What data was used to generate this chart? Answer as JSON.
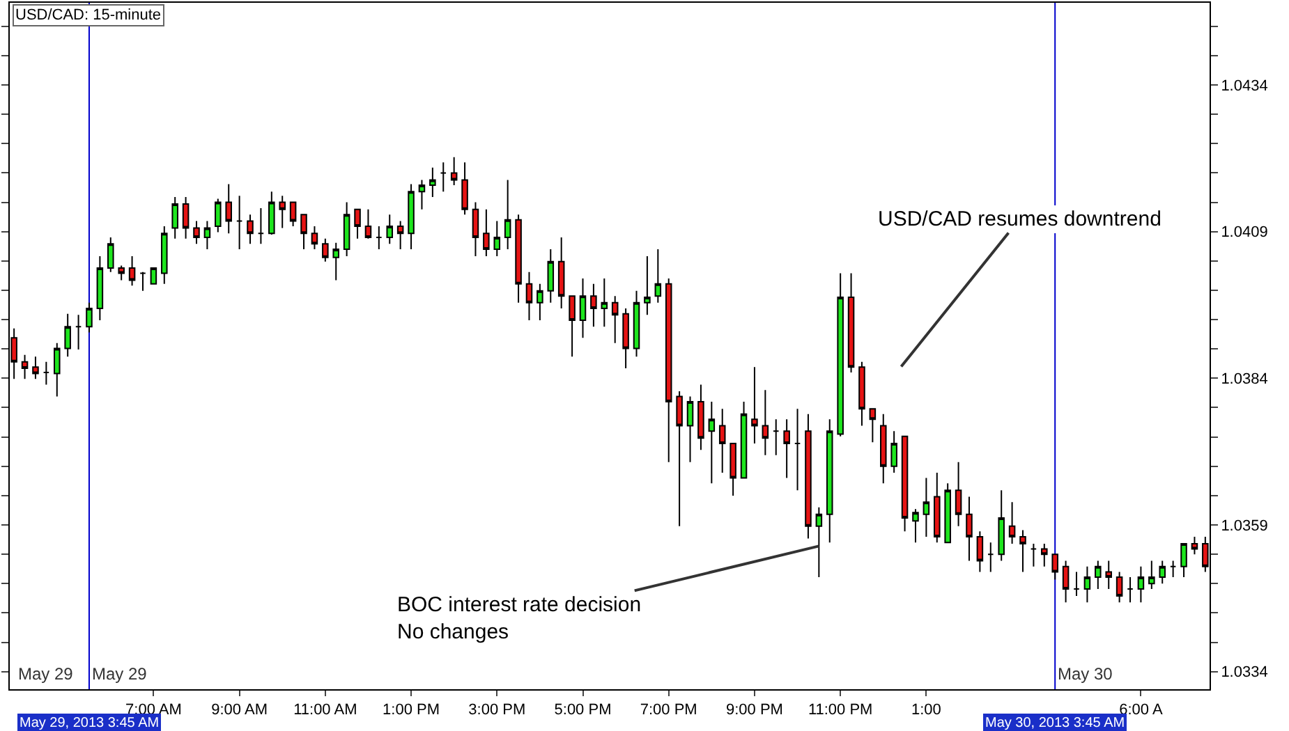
{
  "chart_data": {
    "type": "candlestick",
    "title": "USD/CAD: 15-minute",
    "x": [
      "2013-05-29T03:45",
      "2013-05-29T04:00",
      "2013-05-29T04:15",
      "2013-05-29T04:30",
      "2013-05-29T04:45",
      "2013-05-29T05:00",
      "2013-05-29T05:15",
      "2013-05-29T05:30",
      "2013-05-29T05:45",
      "2013-05-29T06:00",
      "2013-05-29T06:15",
      "2013-05-29T06:30",
      "2013-05-29T06:45",
      "2013-05-29T07:00",
      "2013-05-29T07:15",
      "2013-05-29T07:30",
      "2013-05-29T07:45",
      "2013-05-29T08:00",
      "2013-05-29T08:15",
      "2013-05-29T08:30",
      "2013-05-29T08:45",
      "2013-05-29T09:00",
      "2013-05-29T09:15",
      "2013-05-29T09:30",
      "2013-05-29T09:45",
      "2013-05-29T10:00",
      "2013-05-29T10:15",
      "2013-05-29T10:30",
      "2013-05-29T10:45",
      "2013-05-29T11:00",
      "2013-05-29T11:15",
      "2013-05-29T11:30",
      "2013-05-29T11:45",
      "2013-05-29T12:00",
      "2013-05-29T12:15",
      "2013-05-29T12:30",
      "2013-05-29T12:45",
      "2013-05-29T13:00",
      "2013-05-29T13:15",
      "2013-05-29T13:30",
      "2013-05-29T13:45",
      "2013-05-29T14:00",
      "2013-05-29T14:15",
      "2013-05-29T14:30",
      "2013-05-29T14:45",
      "2013-05-29T15:00",
      "2013-05-29T15:15",
      "2013-05-29T15:30",
      "2013-05-29T15:45",
      "2013-05-29T16:00",
      "2013-05-29T16:15",
      "2013-05-29T16:30",
      "2013-05-29T16:45",
      "2013-05-29T17:00",
      "2013-05-29T17:15",
      "2013-05-29T17:30",
      "2013-05-29T17:45",
      "2013-05-29T18:00",
      "2013-05-29T18:15",
      "2013-05-29T18:30",
      "2013-05-29T18:45",
      "2013-05-29T19:00",
      "2013-05-29T19:15",
      "2013-05-29T19:30",
      "2013-05-29T19:45",
      "2013-05-29T20:00",
      "2013-05-29T20:15",
      "2013-05-29T20:30",
      "2013-05-29T20:45",
      "2013-05-29T21:00",
      "2013-05-29T21:15",
      "2013-05-29T21:30",
      "2013-05-29T21:45",
      "2013-05-29T22:00",
      "2013-05-29T22:15",
      "2013-05-29T22:30",
      "2013-05-29T22:45",
      "2013-05-29T23:00",
      "2013-05-29T23:15",
      "2013-05-29T23:30",
      "2013-05-29T23:45",
      "2013-05-30T00:00",
      "2013-05-30T00:15",
      "2013-05-30T00:30",
      "2013-05-30T00:45",
      "2013-05-30T01:00",
      "2013-05-30T01:15",
      "2013-05-30T01:30",
      "2013-05-30T01:45",
      "2013-05-30T02:00",
      "2013-05-30T02:15",
      "2013-05-30T02:30",
      "2013-05-30T02:45",
      "2013-05-30T03:00",
      "2013-05-30T03:15",
      "2013-05-30T03:30",
      "2013-05-30T03:45",
      "2013-05-30T04:00",
      "2013-05-30T04:15",
      "2013-05-30T04:30",
      "2013-05-30T04:45",
      "2013-05-30T05:00",
      "2013-05-30T05:15",
      "2013-05-30T05:30",
      "2013-05-30T05:45",
      "2013-05-30T06:00",
      "2013-05-30T06:15",
      "2013-05-30T06:30",
      "2013-05-30T06:45",
      "2013-05-30T07:00",
      "2013-05-30T07:15",
      "2013-05-30T07:30"
    ],
    "ohlc": [
      [
        1.03909,
        1.03925,
        1.03839,
        1.03868
      ],
      [
        1.03868,
        1.0388,
        1.03839,
        1.03857
      ],
      [
        1.03859,
        1.03877,
        1.03839,
        1.03848
      ],
      [
        1.0385,
        1.03868,
        1.03829,
        1.0385
      ],
      [
        1.03848,
        1.039,
        1.03809,
        1.03891
      ],
      [
        1.03891,
        1.0395,
        1.03877,
        1.03928
      ],
      [
        1.03928,
        1.03948,
        1.03889,
        1.03928
      ],
      [
        1.03928,
        1.03969,
        1.03918,
        1.03959
      ],
      [
        1.03959,
        1.04048,
        1.03939,
        1.04028
      ],
      [
        1.04028,
        1.0408,
        1.04021,
        1.04069
      ],
      [
        1.04028,
        1.04032,
        1.04007,
        1.04019
      ],
      [
        1.04028,
        1.04048,
        1.03998,
        1.04007
      ],
      [
        1.04019,
        1.04021,
        1.03989,
        1.04019
      ],
      [
        1.04001,
        1.04028,
        1.04001,
        1.04028
      ],
      [
        1.04019,
        1.04099,
        1.04001,
        1.04087
      ],
      [
        1.04096,
        1.04149,
        1.04078,
        1.04137
      ],
      [
        1.04137,
        1.04149,
        1.04078,
        1.04096
      ],
      [
        1.04096,
        1.04108,
        1.04069,
        1.0408
      ],
      [
        1.0408,
        1.04108,
        1.0406,
        1.04096
      ],
      [
        1.04099,
        1.04146,
        1.04089,
        1.0414
      ],
      [
        1.0414,
        1.04171,
        1.04087,
        1.04108
      ],
      [
        1.04108,
        1.04151,
        1.0406,
        1.04108
      ],
      [
        1.04108,
        1.04119,
        1.04069,
        1.04087
      ],
      [
        1.04087,
        1.0413,
        1.04069,
        1.04087
      ],
      [
        1.04087,
        1.04158,
        1.04085,
        1.0414
      ],
      [
        1.0414,
        1.04151,
        1.04096,
        1.04128
      ],
      [
        1.0414,
        1.0414,
        1.04099,
        1.04108
      ],
      [
        1.04119,
        1.04119,
        1.0406,
        1.04087
      ],
      [
        1.04087,
        1.04099,
        1.0406,
        1.04069
      ],
      [
        1.04069,
        1.04078,
        1.04039,
        1.04046
      ],
      [
        1.04046,
        1.04071,
        1.04007,
        1.0406
      ],
      [
        1.0406,
        1.0414,
        1.04048,
        1.04119
      ],
      [
        1.04128,
        1.04128,
        1.04078,
        1.04099
      ],
      [
        1.04099,
        1.04128,
        1.04078,
        1.0408
      ],
      [
        1.0408,
        1.04099,
        1.0406,
        1.0408
      ],
      [
        1.0408,
        1.04119,
        1.04069,
        1.04099
      ],
      [
        1.04099,
        1.04108,
        1.0406,
        1.04087
      ],
      [
        1.04087,
        1.04171,
        1.0406,
        1.04158
      ],
      [
        1.04158,
        1.04178,
        1.04128,
        1.04169
      ],
      [
        1.04169,
        1.04199,
        1.04149,
        1.04178
      ],
      [
        1.0419,
        1.04208,
        1.04158,
        1.0419
      ],
      [
        1.0419,
        1.04217,
        1.04169,
        1.04178
      ],
      [
        1.04178,
        1.04208,
        1.04119,
        1.04128
      ],
      [
        1.04128,
        1.0414,
        1.04048,
        1.0408
      ],
      [
        1.04087,
        1.04128,
        1.04048,
        1.0406
      ],
      [
        1.0406,
        1.04108,
        1.04048,
        1.0408
      ],
      [
        1.0408,
        1.04178,
        1.0406,
        1.0411
      ],
      [
        1.0411,
        1.04119,
        1.03969,
        1.04001
      ],
      [
        1.04001,
        1.04021,
        1.03939,
        1.03969
      ],
      [
        1.03969,
        1.04001,
        1.03939,
        1.03989
      ],
      [
        1.03989,
        1.0406,
        1.03969,
        1.04039
      ],
      [
        1.04039,
        1.0408,
        1.03959,
        1.0398
      ],
      [
        1.0398,
        1.0398,
        1.03877,
        1.03939
      ],
      [
        1.03939,
        1.0401,
        1.03909,
        1.0398
      ],
      [
        1.0398,
        1.04001,
        1.03928,
        1.03959
      ],
      [
        1.03959,
        1.0401,
        1.03928,
        1.03969
      ],
      [
        1.03969,
        1.0398,
        1.039,
        1.03948
      ],
      [
        1.0395,
        1.03959,
        1.03857,
        1.03891
      ],
      [
        1.03891,
        1.03989,
        1.03877,
        1.03969
      ],
      [
        1.03969,
        1.04048,
        1.03948,
        1.03978
      ],
      [
        1.0398,
        1.0406,
        1.03969,
        1.04001
      ],
      [
        1.04001,
        1.0401,
        1.03697,
        1.038
      ],
      [
        1.03809,
        1.03818,
        1.03588,
        1.03759
      ],
      [
        1.03759,
        1.03809,
        1.03697,
        1.038
      ],
      [
        1.038,
        1.03829,
        1.03718,
        1.03738
      ],
      [
        1.0375,
        1.038,
        1.03661,
        1.0377
      ],
      [
        1.03759,
        1.03788,
        1.03679,
        1.03729
      ],
      [
        1.03729,
        1.03729,
        1.0364,
        1.0367
      ],
      [
        1.0367,
        1.038,
        1.0367,
        1.03779
      ],
      [
        1.0377,
        1.03859,
        1.03729,
        1.03759
      ],
      [
        1.03759,
        1.0382,
        1.03709,
        1.03738
      ],
      [
        1.0375,
        1.0377,
        1.03709,
        1.0375
      ],
      [
        1.0375,
        1.0377,
        1.0367,
        1.03729
      ],
      [
        1.03729,
        1.03788,
        1.03649,
        1.03729
      ],
      [
        1.0375,
        1.03779,
        1.03567,
        1.03588
      ],
      [
        1.03588,
        1.0362,
        1.03501,
        1.03608
      ],
      [
        1.03608,
        1.0377,
        1.0356,
        1.0375
      ],
      [
        1.03745,
        1.04019,
        1.03741,
        1.03978
      ],
      [
        1.03978,
        1.04019,
        1.0385,
        1.03859
      ],
      [
        1.03859,
        1.03868,
        1.03759,
        1.03788
      ],
      [
        1.03788,
        1.03788,
        1.03731,
        1.0377
      ],
      [
        1.03759,
        1.03779,
        1.03661,
        1.0369
      ],
      [
        1.0369,
        1.0375,
        1.03679,
        1.03729
      ],
      [
        1.03741,
        1.03741,
        1.03579,
        1.03602
      ],
      [
        1.03597,
        1.03617,
        1.0356,
        1.03611
      ],
      [
        1.03608,
        1.0367,
        1.0357,
        1.03629
      ],
      [
        1.03638,
        1.03679,
        1.0356,
        1.0357
      ],
      [
        1.0356,
        1.03661,
        1.0356,
        1.03649
      ],
      [
        1.03649,
        1.03697,
        1.03588,
        1.03608
      ],
      [
        1.03608,
        1.03638,
        1.03529,
        1.0357
      ],
      [
        1.0357,
        1.03579,
        1.0351,
        1.03529
      ],
      [
        1.0354,
        1.0356,
        1.0351,
        1.0354
      ],
      [
        1.0354,
        1.03649,
        1.03529,
        1.03602
      ],
      [
        1.03588,
        1.03629,
        1.03558,
        1.0357
      ],
      [
        1.0357,
        1.03581,
        1.0351,
        1.03558
      ],
      [
        1.03549,
        1.03558,
        1.03519,
        1.03549
      ],
      [
        1.03549,
        1.03558,
        1.03519,
        1.0354
      ],
      [
        1.0354,
        1.0354,
        1.03497,
        1.0351
      ],
      [
        1.03519,
        1.03529,
        1.03458,
        1.03481
      ],
      [
        1.03481,
        1.0351,
        1.03469,
        1.03481
      ],
      [
        1.03481,
        1.03519,
        1.03458,
        1.03501
      ],
      [
        1.03501,
        1.03529,
        1.03481,
        1.03519
      ],
      [
        1.0351,
        1.03529,
        1.03481,
        1.03501
      ],
      [
        1.03501,
        1.0351,
        1.03458,
        1.03469
      ],
      [
        1.03481,
        1.03501,
        1.03458,
        1.03481
      ],
      [
        1.03481,
        1.03519,
        1.03458,
        1.03501
      ],
      [
        1.0349,
        1.03529,
        1.03481,
        1.03501
      ],
      [
        1.03501,
        1.03529,
        1.0349,
        1.03519
      ],
      [
        1.03519,
        1.03529,
        1.03501,
        1.03519
      ],
      [
        1.03519,
        1.03558,
        1.03501,
        1.03558
      ],
      [
        1.03558,
        1.0357,
        1.0354,
        1.03549
      ],
      [
        1.03558,
        1.0357,
        1.0351,
        1.03519
      ]
    ],
    "colors": [
      "#e61414",
      "#e61414",
      "#e61414",
      "#000000",
      "#1ee61e",
      "#1ee61e",
      "#000000",
      "#1ee61e",
      "#1ee61e",
      "#1ee61e",
      "#e61414",
      "#e61414",
      "#000000",
      "#1ee61e",
      "#1ee61e",
      "#1ee61e",
      "#e61414",
      "#e61414",
      "#1ee61e",
      "#1ee61e",
      "#e61414",
      "#000000",
      "#e61414",
      "#000000",
      "#1ee61e",
      "#e61414",
      "#e61414",
      "#e61414",
      "#e61414",
      "#e61414",
      "#1ee61e",
      "#1ee61e",
      "#e61414",
      "#e61414",
      "#000000",
      "#1ee61e",
      "#e61414",
      "#1ee61e",
      "#1ee61e",
      "#1ee61e",
      "#000000",
      "#e61414",
      "#e61414",
      "#e61414",
      "#e61414",
      "#1ee61e",
      "#1ee61e",
      "#e61414",
      "#e61414",
      "#1ee61e",
      "#1ee61e",
      "#e61414",
      "#e61414",
      "#1ee61e",
      "#e61414",
      "#1ee61e",
      "#e61414",
      "#e61414",
      "#1ee61e",
      "#1ee61e",
      "#1ee61e",
      "#e61414",
      "#e61414",
      "#1ee61e",
      "#e61414",
      "#1ee61e",
      "#e61414",
      "#e61414",
      "#1ee61e",
      "#e61414",
      "#e61414",
      "#000000",
      "#e61414",
      "#000000",
      "#e61414",
      "#1ee61e",
      "#1ee61e",
      "#1ee61e",
      "#e61414",
      "#e61414",
      "#e61414",
      "#e61414",
      "#1ee61e",
      "#e61414",
      "#1ee61e",
      "#1ee61e",
      "#e61414",
      "#1ee61e",
      "#e61414",
      "#e61414",
      "#e61414",
      "#000000",
      "#1ee61e",
      "#e61414",
      "#e61414",
      "#000000",
      "#e61414",
      "#e61414",
      "#e61414",
      "#000000",
      "#1ee61e",
      "#1ee61e",
      "#e61414",
      "#e61414",
      "#000000",
      "#1ee61e",
      "#1ee61e",
      "#1ee61e",
      "#000000",
      "#1ee61e",
      "#e61414",
      "#e61414"
    ],
    "xlim": [
      "2013-05-29T03:39",
      "2013-05-30T07:36"
    ],
    "xticks": [
      {
        "value": "2013-05-29T07:00",
        "label": "7:00 AM"
      },
      {
        "value": "2013-05-29T09:00",
        "label": "9:00 AM"
      },
      {
        "value": "2013-05-29T11:00",
        "label": "11:00 AM"
      },
      {
        "value": "2013-05-29T13:00",
        "label": "1:00 PM"
      },
      {
        "value": "2013-05-29T15:00",
        "label": "3:00 PM"
      },
      {
        "value": "2013-05-29T17:00",
        "label": "5:00 PM"
      },
      {
        "value": "2013-05-29T19:00",
        "label": "7:00 PM"
      },
      {
        "value": "2013-05-29T21:00",
        "label": "9:00 PM"
      },
      {
        "value": "2013-05-29T23:00",
        "label": "11:00 PM"
      },
      {
        "value": "2013-05-30T01:00",
        "label": "1:00"
      },
      {
        "value": "2013-05-30T06:00",
        "label": "6:00 A"
      }
    ],
    "ylim": [
      1.0331,
      1.0448
    ],
    "yticks": [
      1.0334,
      {
        "value": 1.0339,
        "label": null
      },
      {
        "value": 1.0344,
        "label": null
      },
      {
        "value": 1.0349,
        "label": null
      },
      {
        "value": 1.0354,
        "label": null
      },
      1.0359,
      {
        "value": 1.0364,
        "label": null
      },
      {
        "value": 1.0369,
        "label": null
      },
      {
        "value": 1.0374,
        "label": null
      },
      {
        "value": 1.0379,
        "label": null
      },
      1.0384,
      {
        "value": 1.0389,
        "label": null
      },
      {
        "value": 1.0394,
        "label": null
      },
      {
        "value": 1.0399,
        "label": null
      },
      {
        "value": 1.0404,
        "label": null
      },
      1.0409,
      {
        "value": 1.0414,
        "label": null
      },
      {
        "value": 1.0419,
        "label": null
      },
      {
        "value": 1.0424,
        "label": null
      },
      {
        "value": 1.0429,
        "label": null
      },
      1.0434,
      {
        "value": 1.0439,
        "label": null
      },
      {
        "value": 1.0444,
        "label": null
      }
    ],
    "ref_lines": [
      {
        "axis": "x",
        "value": "2013-05-29T05:30",
        "label": "May 29",
        "color": "#0000cc"
      },
      {
        "axis": "x",
        "value": "2013-05-30T04:00",
        "label": "May 30",
        "color": "#0000cc"
      }
    ],
    "annotations": [
      "May 29",
      "May 29, 2013 3:45 AM",
      "May 30, 2013 3:45 AM",
      "USD/CAD resumes downtrend",
      {
        "text": "BOC interest rate decision\nNo changes",
        "x": "2013-05-29T22:30",
        "y": 1.03554
      }
    ]
  }
}
